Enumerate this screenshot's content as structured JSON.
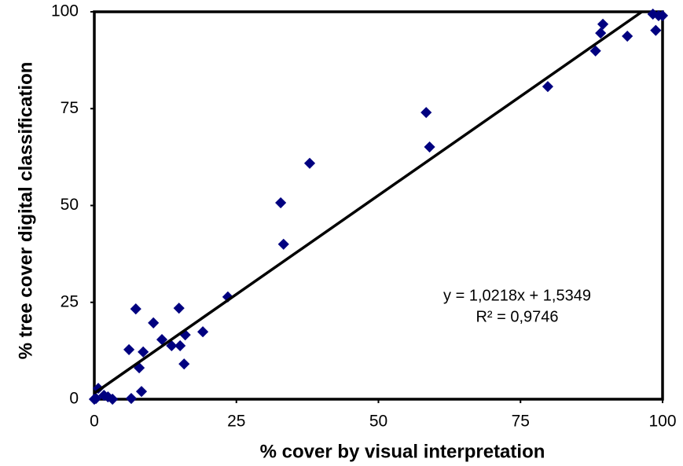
{
  "chart_data": {
    "type": "scatter",
    "xlabel": "% cover by visual interpretation",
    "ylabel": "% tree cover digital classification",
    "xlim": [
      0,
      100
    ],
    "ylim": [
      0,
      100
    ],
    "xticks": [
      0,
      25,
      50,
      75,
      100
    ],
    "yticks": [
      0,
      25,
      50,
      75,
      100
    ],
    "series": [
      {
        "color": "#000080",
        "x": [
          98.3,
          100,
          99.3,
          98.8,
          89.5,
          89.1,
          88.2,
          93.8,
          79.8,
          58.4,
          59,
          37.9,
          32.8,
          33.3,
          23.5,
          7.3,
          14.9,
          10.4,
          19.1,
          16,
          11.9,
          13.6,
          15.1,
          6.1,
          8.6,
          15.8,
          7.9,
          8.3,
          6.5,
          3.2,
          0.7,
          0,
          1.7,
          2.4,
          0.3
        ],
        "values": [
          99.4,
          99,
          99,
          95.2,
          96.8,
          94.5,
          89.9,
          93.7,
          80.7,
          74,
          65.1,
          60.9,
          50.7,
          40,
          26.4,
          23.3,
          23.5,
          19.7,
          17.4,
          16.6,
          15.4,
          13.8,
          13.8,
          12.8,
          12.2,
          9.1,
          8.1,
          2,
          0.2,
          0,
          2.8,
          0,
          1,
          0.6,
          0.2
        ]
      }
    ],
    "trendline": {
      "slope": 1.0218,
      "intercept": 1.5349,
      "color": "#000000",
      "equation": "y = 1,0218x + 1,5349",
      "r2": "R² = 0,9746"
    }
  }
}
